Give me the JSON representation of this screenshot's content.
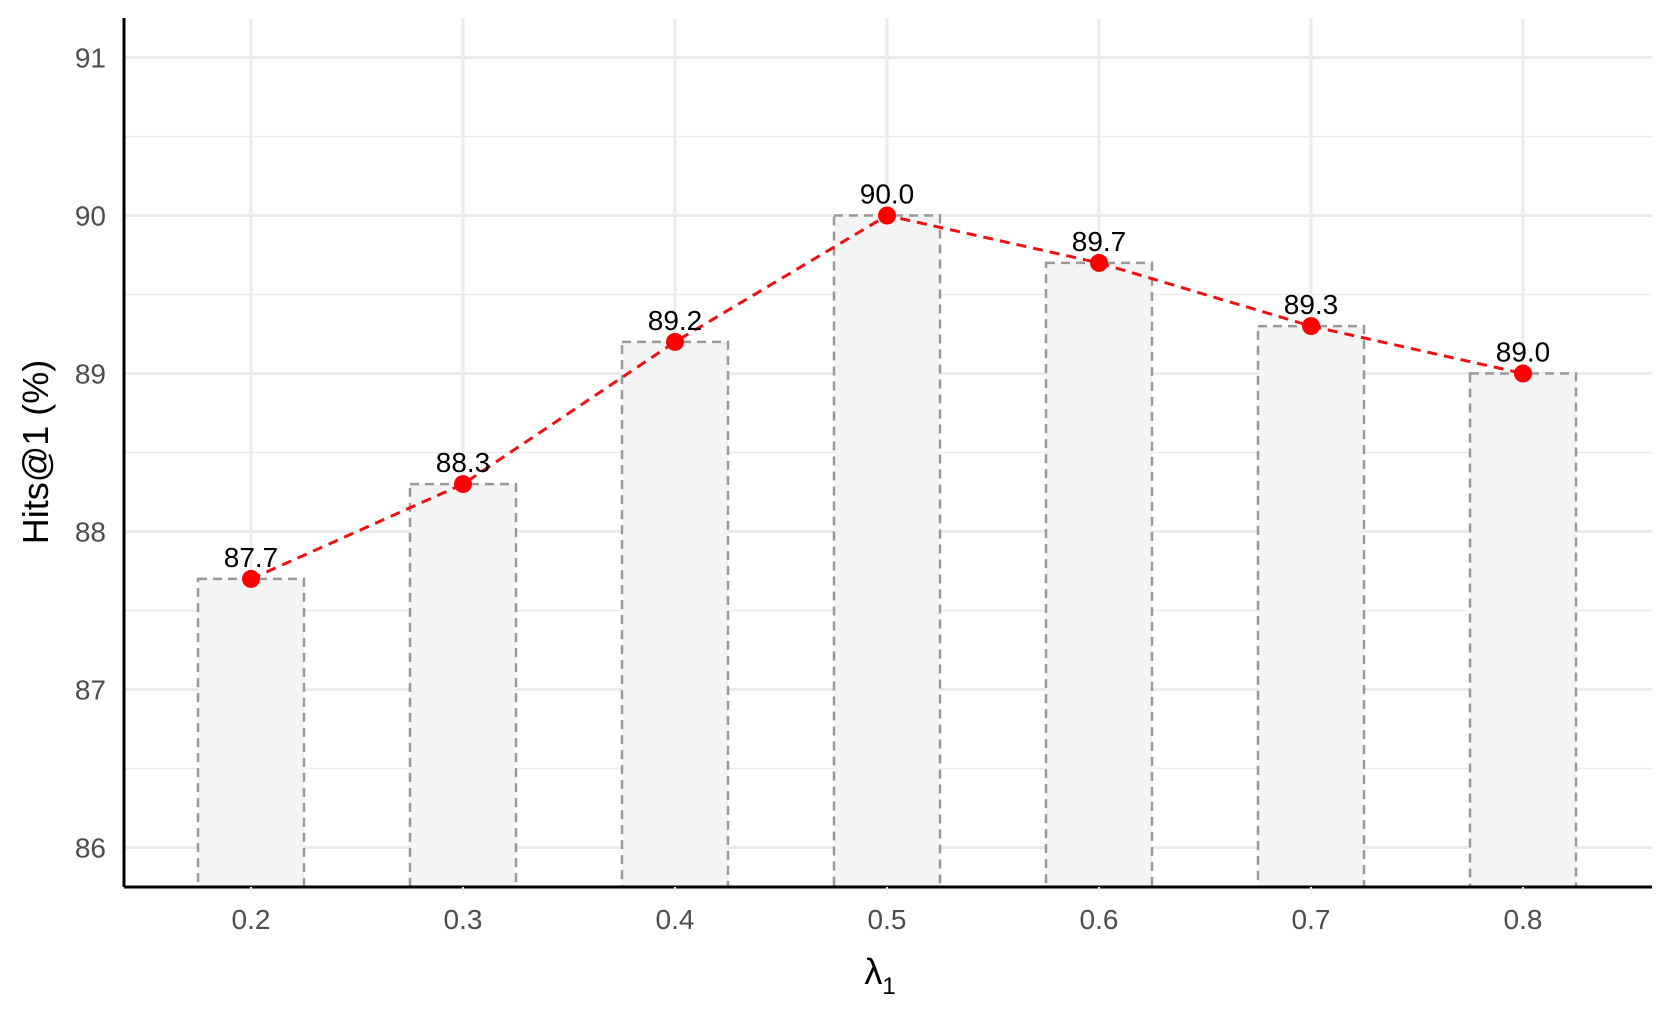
{
  "chart_data": {
    "type": "bar",
    "categories": [
      "0.2",
      "0.3",
      "0.4",
      "0.5",
      "0.6",
      "0.7",
      "0.8"
    ],
    "values": [
      87.7,
      88.3,
      89.2,
      90.0,
      89.7,
      89.3,
      89.0
    ],
    "value_labels": [
      "87.7",
      "88.3",
      "89.2",
      "90.0",
      "89.7",
      "89.3",
      "89.0"
    ],
    "overlay_line": {
      "values": [
        87.7,
        88.3,
        89.2,
        90.0,
        89.7,
        89.3,
        89.0
      ],
      "style": "dashed",
      "markers": "circle"
    },
    "ylabel": "Hits@1 (%)",
    "xlabel_symbol": "λ",
    "xlabel_subscript": "1",
    "ylim": [
      85.75,
      91.25
    ],
    "yticks": [
      86,
      87,
      88,
      89,
      90,
      91
    ],
    "grid": true,
    "colors": {
      "bar_fill": "#f4f4f4",
      "bar_outline": "#999999",
      "line": "#ee1111",
      "marker": "#ff0000",
      "grid": "#ebebeb",
      "axis": "#000000",
      "tick_text": "#4d4d4d",
      "label_text": "#000000"
    }
  }
}
